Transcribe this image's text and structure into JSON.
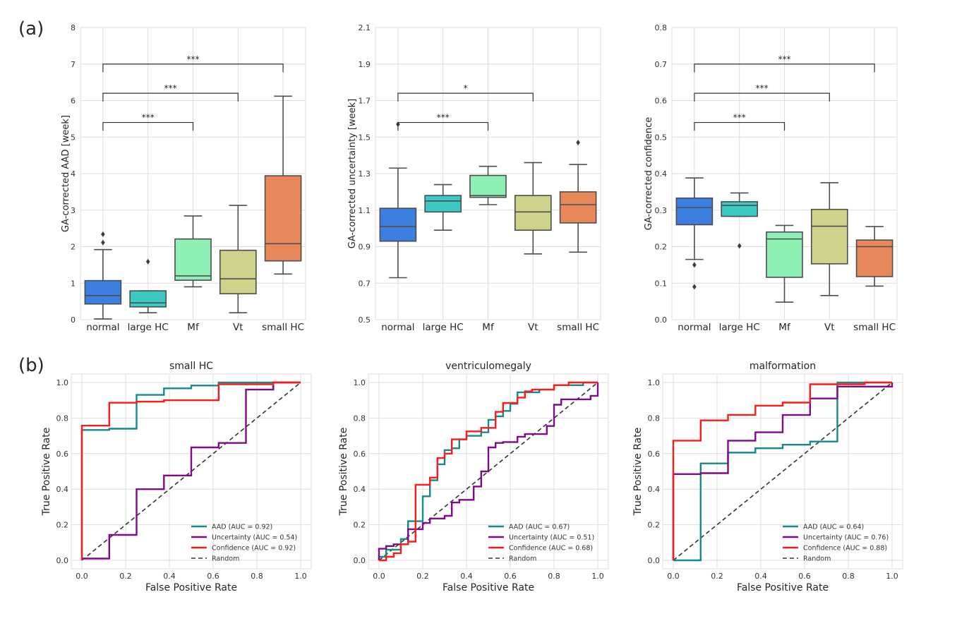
{
  "panel_labels": [
    "(a)",
    "(b)"
  ],
  "colors": {
    "normal": "#3c7fe0",
    "large HC": "#3cc9c6",
    "Mf": "#8ef0b4",
    "Vt": "#cfd28a",
    "small HC": "#e8885a",
    "box_edge": "#4d4d4d",
    "AAD": "#168a8a",
    "Uncertainty": "#800a8a",
    "Confidence": "#ff1a1a",
    "Random": "#333333",
    "grid": "#dddddd"
  },
  "chart_data": [
    {
      "type": "box",
      "panel": "(a)",
      "ylabel": "GA-corrected AAD [week]",
      "ylim": [
        0,
        8
      ],
      "yticks": [
        "0",
        "1",
        "2",
        "3",
        "4",
        "5",
        "6",
        "7",
        "8"
      ],
      "yticks_values": [
        0,
        1,
        2,
        3,
        4,
        5,
        6,
        7,
        8
      ],
      "categories": [
        "normal",
        "large HC",
        "Mf",
        "Vt",
        "small HC"
      ],
      "boxes": [
        {
          "name": "normal",
          "whislo": 0.02,
          "q1": 0.43,
          "med": 0.66,
          "q3": 1.07,
          "whishi": 1.92,
          "fliers": [
            2.11,
            2.34
          ]
        },
        {
          "name": "large HC",
          "whislo": 0.19,
          "q1": 0.35,
          "med": 0.46,
          "q3": 0.79,
          "whishi": 0.79,
          "fliers": [
            1.59
          ]
        },
        {
          "name": "Mf",
          "whislo": 0.9,
          "q1": 1.08,
          "med": 1.2,
          "q3": 2.21,
          "whishi": 2.84,
          "fliers": []
        },
        {
          "name": "Vt",
          "whislo": 0.19,
          "q1": 0.71,
          "med": 1.12,
          "q3": 1.9,
          "whishi": 3.13,
          "fliers": []
        },
        {
          "name": "small HC",
          "whislo": 1.25,
          "q1": 1.61,
          "med": 2.08,
          "q3": 3.94,
          "whishi": 6.12,
          "fliers": []
        }
      ],
      "significance": [
        {
          "from": "normal",
          "to": "Mf",
          "y": 5.4,
          "label": "***"
        },
        {
          "from": "normal",
          "to": "Vt",
          "y": 6.2,
          "label": "***"
        },
        {
          "from": "normal",
          "to": "small HC",
          "y": 7.0,
          "label": "***"
        }
      ]
    },
    {
      "type": "box",
      "panel": "(a)",
      "ylabel": "GA-corrected uncertainty [week]",
      "ylim": [
        0.5,
        2.1
      ],
      "yticks": [
        "0.5",
        "0.7",
        "0.9",
        "1.1",
        "1.3",
        "1.5",
        "1.7",
        "1.9",
        "2.1"
      ],
      "yticks_values": [
        0.5,
        0.7,
        0.9,
        1.1,
        1.3,
        1.5,
        1.7,
        1.9,
        2.1
      ],
      "categories": [
        "normal",
        "large HC",
        "Mf",
        "Vt",
        "small HC"
      ],
      "boxes": [
        {
          "name": "normal",
          "whislo": 0.73,
          "q1": 0.93,
          "med": 1.01,
          "q3": 1.11,
          "whishi": 1.33,
          "fliers": [
            1.57
          ]
        },
        {
          "name": "large HC",
          "whislo": 0.99,
          "q1": 1.09,
          "med": 1.15,
          "q3": 1.18,
          "whishi": 1.24,
          "fliers": []
        },
        {
          "name": "Mf",
          "whislo": 1.13,
          "q1": 1.17,
          "med": 1.18,
          "q3": 1.29,
          "whishi": 1.34,
          "fliers": []
        },
        {
          "name": "Vt",
          "whislo": 0.86,
          "q1": 0.99,
          "med": 1.09,
          "q3": 1.18,
          "whishi": 1.36,
          "fliers": []
        },
        {
          "name": "small HC",
          "whislo": 0.87,
          "q1": 1.03,
          "med": 1.13,
          "q3": 1.2,
          "whishi": 1.35,
          "fliers": [
            1.47
          ]
        }
      ],
      "significance": [
        {
          "from": "normal",
          "to": "Mf",
          "y": 1.58,
          "label": "***"
        },
        {
          "from": "normal",
          "to": "Vt",
          "y": 1.74,
          "label": "*"
        }
      ]
    },
    {
      "type": "box",
      "panel": "(a)",
      "ylabel": "GA-corrected confidence",
      "ylim": [
        0.0,
        0.8
      ],
      "yticks": [
        "0.0",
        "0.1",
        "0.2",
        "0.3",
        "0.4",
        "0.5",
        "0.6",
        "0.7",
        "0.8"
      ],
      "yticks_values": [
        0.0,
        0.1,
        0.2,
        0.3,
        0.4,
        0.5,
        0.6,
        0.7,
        0.8
      ],
      "categories": [
        "normal",
        "large HC",
        "Mf",
        "Vt",
        "small HC"
      ],
      "boxes": [
        {
          "name": "normal",
          "whislo": 0.165,
          "q1": 0.26,
          "med": 0.307,
          "q3": 0.333,
          "whishi": 0.388,
          "fliers": [
            0.15,
            0.09
          ]
        },
        {
          "name": "large HC",
          "whislo": 0.283,
          "q1": 0.283,
          "med": 0.313,
          "q3": 0.323,
          "whishi": 0.347,
          "fliers": [
            0.202
          ]
        },
        {
          "name": "Mf",
          "whislo": 0.048,
          "q1": 0.116,
          "med": 0.221,
          "q3": 0.24,
          "whishi": 0.258,
          "fliers": []
        },
        {
          "name": "Vt",
          "whislo": 0.066,
          "q1": 0.153,
          "med": 0.256,
          "q3": 0.302,
          "whishi": 0.375,
          "fliers": []
        },
        {
          "name": "small HC",
          "whislo": 0.092,
          "q1": 0.118,
          "med": 0.2,
          "q3": 0.218,
          "whishi": 0.255,
          "fliers": []
        }
      ],
      "significance": [
        {
          "from": "normal",
          "to": "Mf",
          "y": 0.54,
          "label": "***"
        },
        {
          "from": "normal",
          "to": "Vt",
          "y": 0.62,
          "label": "***"
        },
        {
          "from": "normal",
          "to": "small HC",
          "y": 0.7,
          "label": "***"
        }
      ]
    },
    {
      "type": "line",
      "panel": "(b)",
      "title": "small HC",
      "xlabel": "False Positive Rate",
      "ylabel": "True Positive Rate",
      "xlim": [
        0,
        1
      ],
      "ylim": [
        0,
        1
      ],
      "xticks": [
        "0.0",
        "0.2",
        "0.4",
        "0.6",
        "0.8",
        "1.0"
      ],
      "yticks": [
        "0.0",
        "0.2",
        "0.4",
        "0.6",
        "0.8",
        "1.0"
      ],
      "legend_position": "lower-right",
      "series": [
        {
          "name": "AAD",
          "label": "AAD (AUC = 0.92)",
          "x": [
            0,
            0,
            0.125,
            0.125,
            0.25,
            0.25,
            0.375,
            0.375,
            0.5,
            0.5,
            0.625,
            0.625,
            1.0
          ],
          "y": [
            0,
            0.733,
            0.733,
            0.74,
            0.74,
            0.93,
            0.93,
            0.967,
            0.967,
            0.983,
            0.983,
            1.0,
            1.0
          ]
        },
        {
          "name": "Uncertainty",
          "label": "Uncertainty (AUC = 0.54)",
          "x": [
            0,
            0.125,
            0.125,
            0.25,
            0.25,
            0.375,
            0.375,
            0.5,
            0.5,
            0.625,
            0.625,
            0.75,
            0.75,
            0.875,
            0.875,
            1.0
          ],
          "y": [
            0.01,
            0.01,
            0.143,
            0.143,
            0.4,
            0.4,
            0.477,
            0.477,
            0.635,
            0.635,
            0.66,
            0.66,
            0.96,
            0.96,
            1.0,
            1.0
          ]
        },
        {
          "name": "Confidence",
          "label": "Confidence (AUC = 0.92)",
          "x": [
            0,
            0,
            0.125,
            0.125,
            0.25,
            0.25,
            0.375,
            0.375,
            0.625,
            0.625,
            0.875,
            0.875,
            1.0
          ],
          "y": [
            0,
            0.757,
            0.757,
            0.886,
            0.886,
            0.892,
            0.892,
            0.9,
            0.9,
            0.99,
            0.99,
            1.0,
            1.0
          ]
        },
        {
          "name": "Random",
          "label": "Random",
          "x": [
            0,
            1
          ],
          "y": [
            0,
            1
          ],
          "dashed": true
        }
      ]
    },
    {
      "type": "line",
      "panel": "(b)",
      "title": "ventriculomegaly",
      "xlabel": "False Positive Rate",
      "ylabel": "True Positive Rate",
      "xlim": [
        0,
        1
      ],
      "ylim": [
        0,
        1
      ],
      "xticks": [
        "0.0",
        "0.2",
        "0.4",
        "0.6",
        "0.8",
        "1.0"
      ],
      "yticks": [
        "0.0",
        "0.2",
        "0.4",
        "0.6",
        "0.8",
        "1.0"
      ],
      "legend_position": "lower-right",
      "series": [
        {
          "name": "AAD",
          "label": "AAD (AUC = 0.67)",
          "x": [
            0,
            0,
            0.033,
            0.033,
            0.1,
            0.1,
            0.133,
            0.133,
            0.2,
            0.2,
            0.233,
            0.233,
            0.267,
            0.267,
            0.3,
            0.3,
            0.333,
            0.333,
            0.367,
            0.367,
            0.4,
            0.4,
            0.467,
            0.467,
            0.5,
            0.5,
            0.533,
            0.533,
            0.567,
            0.567,
            0.6,
            0.6,
            0.633,
            0.633,
            0.733,
            0.733,
            0.8,
            0.8,
            0.933,
            0.933,
            1.0
          ],
          "y": [
            0,
            0.02,
            0.02,
            0.06,
            0.06,
            0.12,
            0.12,
            0.22,
            0.22,
            0.36,
            0.36,
            0.45,
            0.45,
            0.54,
            0.54,
            0.62,
            0.62,
            0.63,
            0.63,
            0.68,
            0.68,
            0.7,
            0.7,
            0.72,
            0.72,
            0.79,
            0.79,
            0.81,
            0.81,
            0.84,
            0.84,
            0.88,
            0.88,
            0.945,
            0.945,
            0.96,
            0.96,
            0.985,
            0.985,
            1.0,
            1.0
          ]
        },
        {
          "name": "Uncertainty",
          "label": "Uncertainty (AUC = 0.51)",
          "x": [
            0,
            0,
            0.033,
            0.033,
            0.067,
            0.067,
            0.133,
            0.133,
            0.2,
            0.2,
            0.233,
            0.233,
            0.3,
            0.3,
            0.333,
            0.333,
            0.367,
            0.367,
            0.433,
            0.433,
            0.467,
            0.467,
            0.5,
            0.5,
            0.533,
            0.533,
            0.567,
            0.567,
            0.633,
            0.633,
            0.667,
            0.667,
            0.767,
            0.767,
            0.8,
            0.8,
            0.833,
            0.833,
            0.967,
            0.967,
            1.0,
            1.0
          ],
          "y": [
            0,
            0.065,
            0.065,
            0.08,
            0.08,
            0.09,
            0.09,
            0.175,
            0.175,
            0.21,
            0.21,
            0.235,
            0.235,
            0.25,
            0.25,
            0.325,
            0.325,
            0.34,
            0.34,
            0.415,
            0.415,
            0.5,
            0.5,
            0.635,
            0.635,
            0.66,
            0.66,
            0.665,
            0.665,
            0.695,
            0.695,
            0.71,
            0.71,
            0.755,
            0.755,
            0.875,
            0.875,
            0.905,
            0.905,
            0.925,
            0.925,
            1.0
          ]
        },
        {
          "name": "Confidence",
          "label": "Confidence (AUC = 0.68)",
          "x": [
            0,
            0.033,
            0.033,
            0.067,
            0.067,
            0.1,
            0.1,
            0.133,
            0.133,
            0.167,
            0.167,
            0.233,
            0.233,
            0.267,
            0.267,
            0.3,
            0.3,
            0.333,
            0.333,
            0.4,
            0.4,
            0.467,
            0.467,
            0.533,
            0.533,
            0.567,
            0.567,
            0.633,
            0.633,
            0.667,
            0.667,
            0.7,
            0.7,
            0.8,
            0.8,
            0.867,
            0.867,
            1.0
          ],
          "y": [
            0,
            0,
            0.02,
            0.02,
            0.04,
            0.04,
            0.09,
            0.09,
            0.105,
            0.105,
            0.425,
            0.425,
            0.465,
            0.465,
            0.575,
            0.575,
            0.6,
            0.6,
            0.68,
            0.68,
            0.725,
            0.725,
            0.745,
            0.745,
            0.835,
            0.835,
            0.885,
            0.885,
            0.915,
            0.915,
            0.95,
            0.95,
            0.96,
            0.96,
            0.985,
            0.985,
            1.0,
            1.0
          ]
        },
        {
          "name": "Random",
          "label": "Random",
          "x": [
            0,
            1
          ],
          "y": [
            0,
            1
          ],
          "dashed": true
        }
      ]
    },
    {
      "type": "line",
      "panel": "(b)",
      "title": "malformation",
      "xlabel": "False Positive Rate",
      "ylabel": "True Positive Rate",
      "xlim": [
        0,
        1
      ],
      "ylim": [
        0,
        1
      ],
      "xticks": [
        "0.0",
        "0.2",
        "0.4",
        "0.6",
        "0.8",
        "1.0"
      ],
      "yticks": [
        "0.0",
        "0.2",
        "0.4",
        "0.6",
        "0.8",
        "1.0"
      ],
      "legend_position": "lower-right",
      "series": [
        {
          "name": "AAD",
          "label": "AAD (AUC = 0.64)",
          "x": [
            0,
            0.125,
            0.125,
            0.25,
            0.25,
            0.375,
            0.375,
            0.5,
            0.5,
            0.625,
            0.625,
            0.75,
            0.75,
            0.875,
            0.875,
            1.0
          ],
          "y": [
            0,
            0,
            0.545,
            0.545,
            0.606,
            0.606,
            0.63,
            0.63,
            0.65,
            0.65,
            0.668,
            0.668,
            1.0,
            1.0,
            1.0,
            1.0
          ]
        },
        {
          "name": "Uncertainty",
          "label": "Uncertainty (AUC = 0.76)",
          "x": [
            0,
            0,
            0.125,
            0.125,
            0.25,
            0.25,
            0.375,
            0.375,
            0.5,
            0.5,
            0.625,
            0.625,
            0.75,
            0.75,
            1.0,
            1.0
          ],
          "y": [
            0,
            0.485,
            0.485,
            0.49,
            0.49,
            0.673,
            0.673,
            0.72,
            0.72,
            0.817,
            0.817,
            0.91,
            0.91,
            0.977,
            0.977,
            1.0
          ]
        },
        {
          "name": "Confidence",
          "label": "Confidence (AUC = 0.88)",
          "x": [
            0,
            0,
            0.125,
            0.125,
            0.25,
            0.25,
            0.375,
            0.375,
            0.5,
            0.5,
            0.625,
            0.625,
            0.875,
            0.875,
            1.0
          ],
          "y": [
            0,
            0.673,
            0.673,
            0.787,
            0.787,
            0.818,
            0.818,
            0.87,
            0.87,
            0.887,
            0.887,
            0.99,
            0.99,
            1.0,
            1.0
          ]
        },
        {
          "name": "Random",
          "label": "Random",
          "x": [
            0,
            1
          ],
          "y": [
            0,
            1
          ],
          "dashed": true
        }
      ]
    }
  ]
}
